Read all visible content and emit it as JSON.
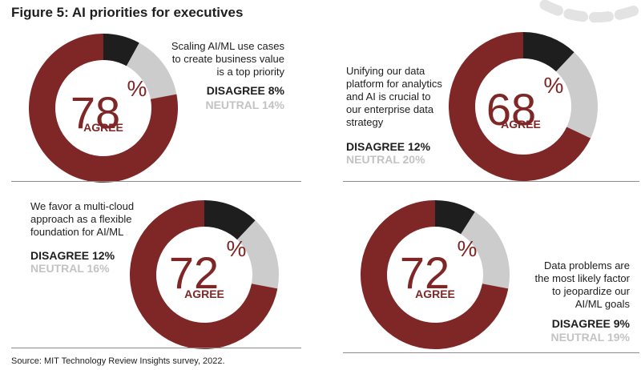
{
  "title": "Figure 5: AI priorities for executives",
  "source": "Source: MIT Technology Review Insights survey, 2022.",
  "colors": {
    "agree": "#7f2626",
    "disagree": "#1e1e1e",
    "neutral": "#cccccc"
  },
  "panels": [
    {
      "blurb": [
        "Scaling AI/ML use cases",
        "to create business value",
        "is a top priority"
      ],
      "agree_label": "AGREE",
      "disagree_text": "DISAGREE 8%",
      "neutral_text": "NEUTRAL 14%"
    },
    {
      "blurb": [
        "Unifying our data",
        "platform for analytics",
        "and AI is crucial to",
        "our enterprise data",
        "strategy"
      ],
      "agree_label": "AGREE",
      "disagree_text": "DISAGREE 12%",
      "neutral_text": "NEUTRAL 20%"
    },
    {
      "blurb": [
        "We favor a multi-cloud",
        "approach as a flexible",
        "foundation for AI/ML"
      ],
      "agree_label": "AGREE",
      "disagree_text": "DISAGREE 12%",
      "neutral_text": "NEUTRAL 16%"
    },
    {
      "blurb": [
        "Data problems are",
        "the most likely factor",
        "to jeopardize our",
        "AI/ML goals"
      ],
      "agree_label": "AGREE",
      "disagree_text": "DISAGREE 9%",
      "neutral_text": "NEUTRAL 19%"
    }
  ],
  "chart_data": [
    {
      "type": "pie",
      "categories": [
        "Disagree",
        "Neutral",
        "Agree"
      ],
      "values": [
        8,
        14,
        78
      ],
      "center_value": "78",
      "unit": "%"
    },
    {
      "type": "pie",
      "categories": [
        "Disagree",
        "Neutral",
        "Agree"
      ],
      "values": [
        12,
        20,
        68
      ],
      "center_value": "68",
      "unit": "%"
    },
    {
      "type": "pie",
      "categories": [
        "Disagree",
        "Neutral",
        "Agree"
      ],
      "values": [
        12,
        16,
        72
      ],
      "center_value": "72",
      "unit": "%"
    },
    {
      "type": "pie",
      "categories": [
        "Disagree",
        "Neutral",
        "Agree"
      ],
      "values": [
        9,
        19,
        72
      ],
      "center_value": "72",
      "unit": "%"
    }
  ]
}
